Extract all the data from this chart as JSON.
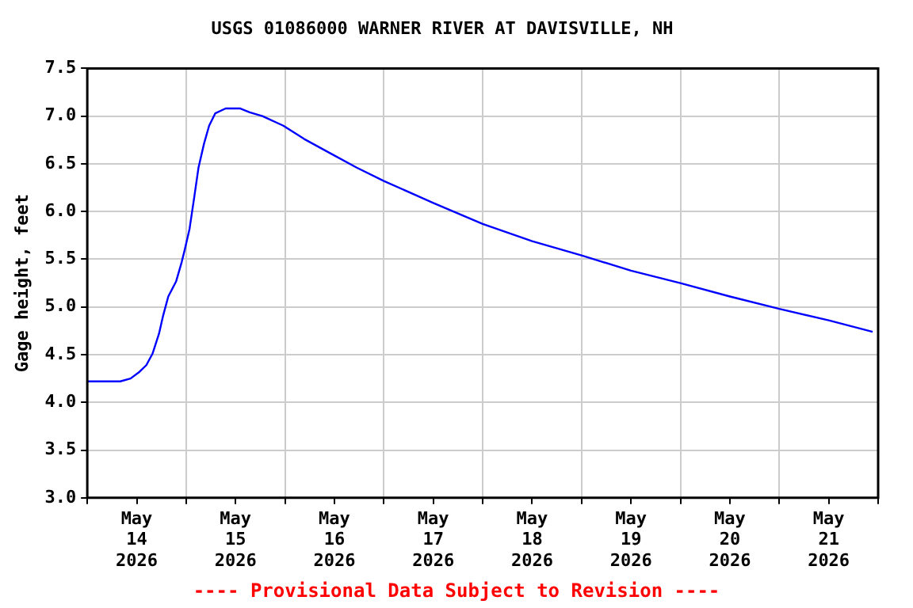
{
  "chart_data": {
    "type": "line",
    "title": "USGS 01086000 WARNER RIVER AT DAVISVILLE, NH",
    "ylabel": "Gage height, feet",
    "annotations": [
      "---- Provisional Data Subject to Revision ----"
    ],
    "series": [
      {
        "color": "#0000ff",
        "x": [
          "2026-05-14T00:00",
          "2026-05-14T08:00",
          "2026-05-14T10:30",
          "2026-05-14T12:40",
          "2026-05-14T14:20",
          "2026-05-14T15:50",
          "2026-05-14T17:25",
          "2026-05-14T18:25",
          "2026-05-14T19:40",
          "2026-05-14T21:35",
          "2026-05-14T22:55",
          "2026-05-14T23:40",
          "2026-05-15T00:50",
          "2026-05-15T02:00",
          "2026-05-15T03:00",
          "2026-05-15T04:20",
          "2026-05-15T05:35",
          "2026-05-15T07:05",
          "2026-05-15T09:35",
          "2026-05-15T13:10",
          "2026-05-15T15:25",
          "2026-05-15T18:30",
          "2026-05-15T23:35",
          "2026-05-16T04:40",
          "2026-05-16T11:00",
          "2026-05-16T17:25",
          "2026-05-17T00:00",
          "2026-05-17T12:00",
          "2026-05-18T00:00",
          "2026-05-18T12:00",
          "2026-05-19T00:00",
          "2026-05-19T12:00",
          "2026-05-20T00:00",
          "2026-05-20T12:00",
          "2026-05-21T00:00",
          "2026-05-21T12:00",
          "2026-05-21T22:40"
        ],
        "values": [
          4.22,
          4.22,
          4.25,
          4.32,
          4.39,
          4.51,
          4.72,
          4.91,
          5.11,
          5.27,
          5.47,
          5.6,
          5.82,
          6.16,
          6.46,
          6.71,
          6.9,
          7.03,
          7.08,
          7.08,
          7.04,
          7.0,
          6.9,
          6.76,
          6.61,
          6.46,
          6.32,
          6.09,
          5.87,
          5.69,
          5.54,
          5.38,
          5.25,
          5.11,
          4.98,
          4.86,
          4.74
        ]
      }
    ],
    "xlim": [
      "2026-05-14T00:00",
      "2026-05-22T00:00"
    ],
    "xticks": [
      {
        "value": "2026-05-14T00:00",
        "label": null
      },
      {
        "value": "2026-05-14T12:00",
        "label": "May 14 2026"
      },
      {
        "value": "2026-05-15T00:00",
        "label": null
      },
      {
        "value": "2026-05-15T12:00",
        "label": "May 15 2026"
      },
      {
        "value": "2026-05-16T00:00",
        "label": null
      },
      {
        "value": "2026-05-16T12:00",
        "label": "May 16 2026"
      },
      {
        "value": "2026-05-17T00:00",
        "label": null
      },
      {
        "value": "2026-05-17T12:00",
        "label": "May 17 2026"
      },
      {
        "value": "2026-05-18T00:00",
        "label": null
      },
      {
        "value": "2026-05-18T12:00",
        "label": "May 18 2026"
      },
      {
        "value": "2026-05-19T00:00",
        "label": null
      },
      {
        "value": "2026-05-19T12:00",
        "label": "May 19 2026"
      },
      {
        "value": "2026-05-20T00:00",
        "label": null
      },
      {
        "value": "2026-05-20T12:00",
        "label": "May 20 2026"
      },
      {
        "value": "2026-05-21T00:00",
        "label": null
      },
      {
        "value": "2026-05-21T12:00",
        "label": "May 21 2026"
      },
      {
        "value": "2026-05-22T00:00",
        "label": null
      }
    ],
    "ylim": [
      3.0,
      7.5
    ],
    "yticks": [
      {
        "value": 3,
        "label": "3.0"
      },
      {
        "value": 3.5,
        "label": "3.5"
      },
      {
        "value": 4,
        "label": "4.0"
      },
      {
        "value": 4.5,
        "label": "4.5"
      },
      {
        "value": 5,
        "label": "5.0"
      },
      {
        "value": 5.5,
        "label": "5.5"
      },
      {
        "value": 6,
        "label": "6.0"
      },
      {
        "value": 6.5,
        "label": "6.5"
      },
      {
        "value": 7,
        "label": "7.0"
      },
      {
        "value": 7.5,
        "label": "7.5"
      }
    ],
    "grid": true
  }
}
